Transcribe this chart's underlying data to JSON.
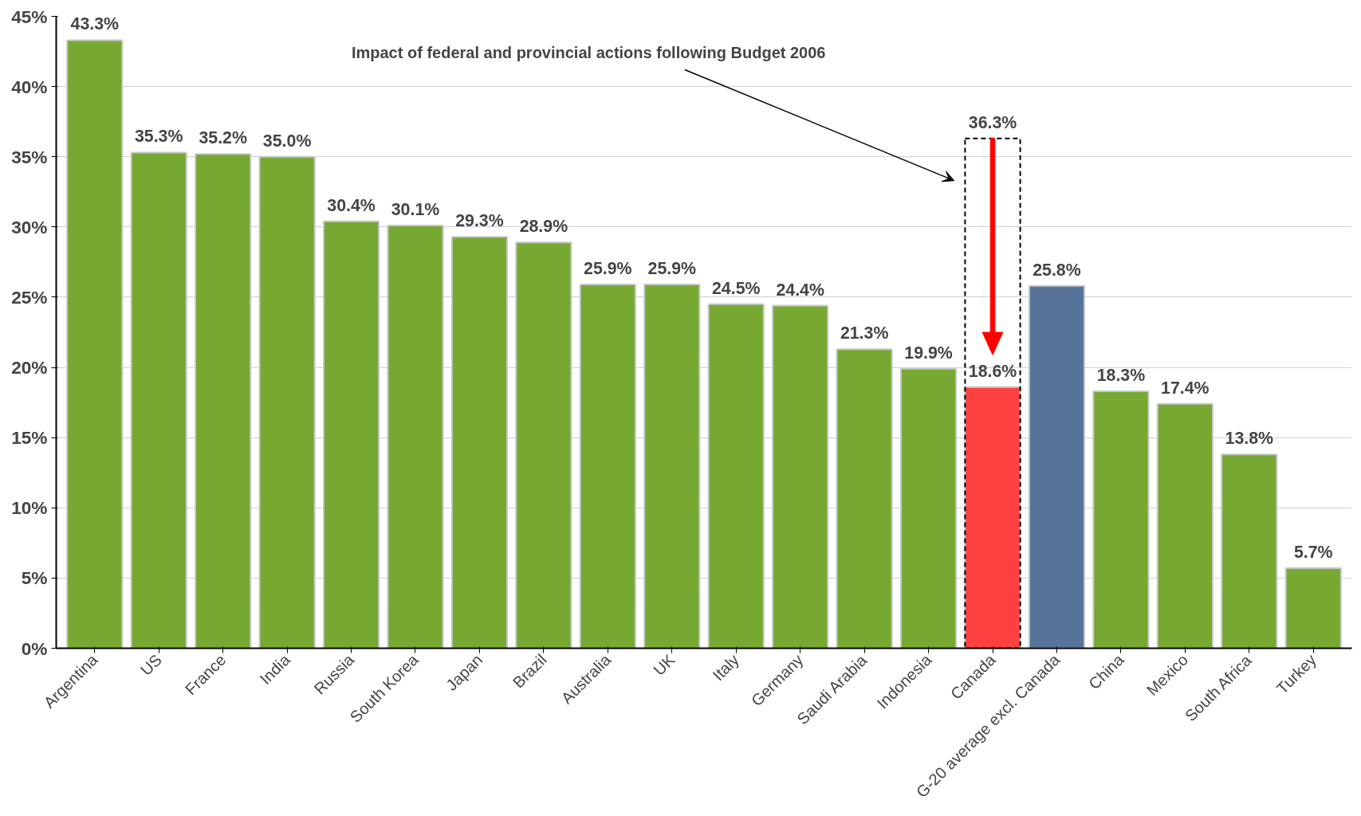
{
  "chart_data": {
    "type": "bar",
    "categories": [
      "Argentina",
      "US",
      "France",
      "India",
      "Russia",
      "South Korea",
      "Japan",
      "Brazil",
      "Australia",
      "UK",
      "Italy",
      "Germany",
      "Saudi Arabia",
      "Indonesia",
      "Canada",
      "G-20 average excl. Canada",
      "China",
      "Mexico",
      "South Africa",
      "Turkey"
    ],
    "series": [
      {
        "values": [
          43.3,
          35.3,
          35.2,
          35.0,
          30.4,
          30.1,
          29.3,
          28.9,
          25.9,
          25.9,
          24.5,
          24.4,
          21.3,
          19.9,
          18.6,
          25.8,
          18.3,
          17.4,
          13.8,
          5.7
        ],
        "colors": [
          "#76a832",
          "#76a832",
          "#76a832",
          "#76a832",
          "#76a832",
          "#76a832",
          "#76a832",
          "#76a832",
          "#76a832",
          "#76a832",
          "#76a832",
          "#76a832",
          "#76a832",
          "#76a832",
          "#ff4040",
          "#56739a",
          "#76a832",
          "#76a832",
          "#76a832",
          "#76a832"
        ],
        "value_labels": [
          "43.3%",
          "35.3%",
          "35.2%",
          "35.0%",
          "30.4%",
          "30.1%",
          "29.3%",
          "28.9%",
          "25.9%",
          "25.9%",
          "24.5%",
          "24.4%",
          "21.3%",
          "19.9%",
          "18.6%",
          "25.8%",
          "18.3%",
          "17.4%",
          "13.8%",
          "5.7%"
        ]
      },
      {
        "line_style": "dashed",
        "color": "#000000",
        "values": [
          null,
          null,
          null,
          null,
          null,
          null,
          null,
          null,
          null,
          null,
          null,
          null,
          null,
          null,
          36.3,
          null,
          null,
          null,
          null,
          null
        ],
        "value_labels": [
          null,
          null,
          null,
          null,
          null,
          null,
          null,
          null,
          null,
          null,
          null,
          null,
          null,
          null,
          "36.3%",
          null,
          null,
          null,
          null,
          null
        ]
      }
    ],
    "ylim": [
      0,
      45
    ],
    "yticks": [
      {
        "value": 0,
        "label": "0%"
      },
      {
        "value": 5,
        "label": "5%"
      },
      {
        "value": 10,
        "label": "10%"
      },
      {
        "value": 15,
        "label": "15%"
      },
      {
        "value": 20,
        "label": "20%"
      },
      {
        "value": 25,
        "label": "25%"
      },
      {
        "value": 30,
        "label": "30%"
      },
      {
        "value": 35,
        "label": "35%"
      },
      {
        "value": 40,
        "label": "40%"
      },
      {
        "value": 45,
        "label": "45%"
      }
    ],
    "grid": "y",
    "annotations": [
      "Impact of federal and provincial actions following Budget 2006"
    ]
  }
}
